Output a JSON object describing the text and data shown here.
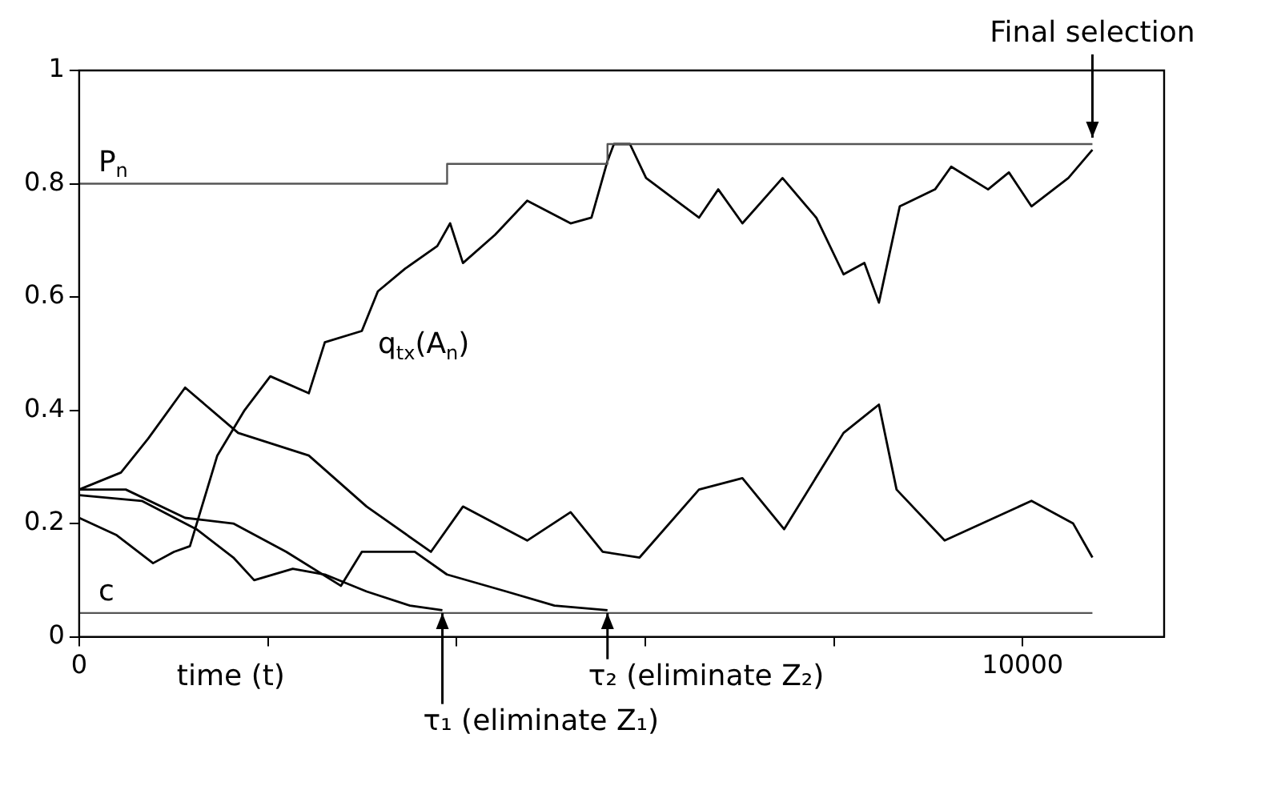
{
  "chart_data": {
    "type": "line",
    "xlabel": "time (t)",
    "xlim": [
      0,
      11500
    ],
    "xticks": [
      0,
      {
        "value": 2000,
        "label": null
      },
      {
        "value": 4000,
        "label": null
      },
      {
        "value": 6000,
        "label": null
      },
      {
        "value": 8000,
        "label": null
      },
      10000
    ],
    "ylim": [
      0,
      1
    ],
    "yticks": [
      0,
      0.2,
      0.4,
      0.6,
      0.8,
      1
    ],
    "grid": false,
    "legend": false,
    "marker": "none",
    "line_style": "solid",
    "annotations": [
      {
        "text": "τ₁ (eliminate Z₁)",
        "x": 3850,
        "y": 0.042
      },
      {
        "text": "τ₂ (eliminate Z₂)",
        "x": 5600,
        "y": 0.042
      },
      {
        "text": "Final selection",
        "x": 10740,
        "y": 0.87
      }
    ],
    "series": [
      {
        "name": "P$_{n}$",
        "type": "step",
        "color": "#555555",
        "x": [
          0,
          3900,
          5600,
          10740
        ],
        "values": [
          0.8,
          0.835,
          0.87,
          0.87
        ]
      },
      {
        "name": "c",
        "type": "line",
        "color": "#555555",
        "x": [
          0,
          10740
        ],
        "values": [
          0.042,
          0.042
        ]
      },
      {
        "name": "q$_{tx}$(A$_{n}$)",
        "type": "line",
        "color": "#000000",
        "x": [
          0,
          391,
          783,
          1004,
          1174,
          1464,
          1753,
          2026,
          2434,
          2604,
          2996,
          3166,
          3455,
          3796,
          3932,
          4068,
          4409,
          4749,
          5209,
          5430,
          5600,
          5668,
          5838,
          6009,
          6570,
          6774,
          7030,
          7455,
          7813,
          8102,
          8323,
          8477,
          8698,
          9072,
          9243,
          9634,
          9855,
          10094,
          10485,
          10740
        ],
        "values": [
          0.21,
          0.18,
          0.13,
          0.15,
          0.16,
          0.32,
          0.4,
          0.46,
          0.43,
          0.52,
          0.54,
          0.61,
          0.65,
          0.69,
          0.73,
          0.66,
          0.71,
          0.77,
          0.73,
          0.74,
          0.84,
          0.87,
          0.87,
          0.81,
          0.74,
          0.79,
          0.73,
          0.81,
          0.74,
          0.64,
          0.66,
          0.59,
          0.76,
          0.79,
          0.83,
          0.79,
          0.82,
          0.76,
          0.81,
          0.86
        ]
      },
      {
        "type": "line",
        "color": "#000000",
        "x": [
          0,
          443,
          732,
          1123,
          1685,
          2434,
          3047,
          3728,
          4068,
          4749,
          5209,
          5549,
          5940,
          6570,
          7030,
          7472,
          8102,
          8477,
          8664,
          9174,
          10094,
          10536,
          10740
        ],
        "values": [
          0.26,
          0.29,
          0.35,
          0.44,
          0.36,
          0.32,
          0.23,
          0.15,
          0.23,
          0.17,
          0.22,
          0.15,
          0.14,
          0.26,
          0.28,
          0.19,
          0.36,
          0.41,
          0.26,
          0.17,
          0.24,
          0.2,
          0.14
        ]
      },
      {
        "type": "line",
        "color": "#000000",
        "x": [
          0,
          664,
          1243,
          1634,
          1855,
          2264,
          2604,
          3047,
          3506,
          3850
        ],
        "values": [
          0.25,
          0.24,
          0.19,
          0.14,
          0.1,
          0.12,
          0.11,
          0.08,
          0.055,
          0.047
        ]
      },
      {
        "type": "line",
        "color": "#000000",
        "x": [
          0,
          494,
          1123,
          1634,
          2196,
          2774,
          2996,
          3557,
          3898,
          4528,
          5038,
          5600
        ],
        "values": [
          0.26,
          0.26,
          0.21,
          0.2,
          0.15,
          0.09,
          0.15,
          0.15,
          0.11,
          0.08,
          0.055,
          0.047
        ]
      }
    ]
  }
}
